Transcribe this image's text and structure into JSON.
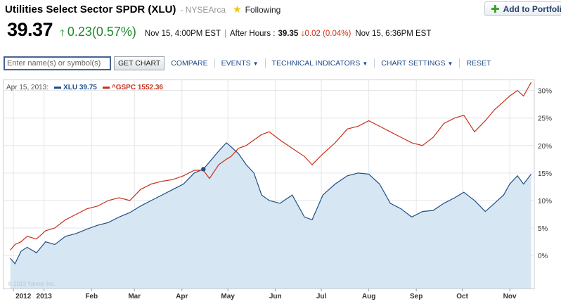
{
  "header": {
    "title": "Utilities Select Sector SPDR (XLU)",
    "exchange": "- NYSEArca",
    "following_label": "Following",
    "add_portfolio_label": "Add to Portfolio"
  },
  "quote": {
    "price": "39.37",
    "change": "0.23",
    "change_pct": "(0.57%)",
    "close_time": "Nov 15, 4:00PM EST",
    "after_hours_label": "After Hours :",
    "after_hours_price": "39.35",
    "after_hours_change": "0.02 (0.04%)",
    "after_hours_time": "Nov 15, 6:36PM EST"
  },
  "toolbar": {
    "symbol_placeholder": "Enter name(s) or symbol(s)",
    "get_chart_label": "GET CHART",
    "compare_label": "COMPARE",
    "events_label": "EVENTS",
    "technical_indicators_label": "TECHNICAL INDICATORS",
    "chart_settings_label": "CHART SETTINGS",
    "reset_label": "RESET"
  },
  "legend": {
    "date": "Apr 15, 2013:",
    "xlu": "XLU 39.75",
    "gspc": "^GSPC 1552.36"
  },
  "credit": "© 2013 Yahoo! Inc.",
  "colors": {
    "xlu": "#1f4f85",
    "xlu_fill": "#d6e6f2",
    "gspc": "#c8311c",
    "positive": "#1d8b2a",
    "negative": "#d12f17"
  },
  "chart_data": {
    "type": "area",
    "ylabel": "",
    "y_unit": "%",
    "ylim": [
      -6,
      32
    ],
    "y_ticks": [
      "0%",
      "5%",
      "10%",
      "15%",
      "20%",
      "25%",
      "30%"
    ],
    "y_tick_values": [
      0,
      5,
      10,
      15,
      20,
      25,
      30
    ],
    "x_tick_labels": [
      "2012",
      "2013",
      "Feb",
      "Mar",
      "Apr",
      "May",
      "Jun",
      "Jul",
      "Aug",
      "Sep",
      "Oct",
      "Nov"
    ],
    "x_tick_values": [
      "2012-12-12",
      "2013-01-01",
      "2013-02-01",
      "2013-03-01",
      "2013-04-01",
      "2013-05-01",
      "2013-06-01",
      "2013-07-01",
      "2013-08-01",
      "2013-09-01",
      "2013-10-01",
      "2013-11-01"
    ],
    "grid": true,
    "marker": {
      "date": "2013-04-15",
      "value": 15.7
    },
    "series": [
      {
        "name": "XLU",
        "style": "area",
        "points": [
          [
            "2012-12-10",
            -0.5
          ],
          [
            "2012-12-13",
            -1.5
          ],
          [
            "2012-12-17",
            0.8
          ],
          [
            "2012-12-21",
            1.5
          ],
          [
            "2012-12-27",
            0.5
          ],
          [
            "2013-01-02",
            2.5
          ],
          [
            "2013-01-08",
            2.0
          ],
          [
            "2013-01-15",
            3.5
          ],
          [
            "2013-01-22",
            4.0
          ],
          [
            "2013-01-29",
            4.8
          ],
          [
            "2013-02-05",
            5.5
          ],
          [
            "2013-02-12",
            6.0
          ],
          [
            "2013-02-19",
            7.0
          ],
          [
            "2013-02-26",
            7.8
          ],
          [
            "2013-03-05",
            9.0
          ],
          [
            "2013-03-12",
            10.0
          ],
          [
            "2013-03-19",
            11.0
          ],
          [
            "2013-03-26",
            12.0
          ],
          [
            "2013-04-02",
            13.0
          ],
          [
            "2013-04-09",
            15.0
          ],
          [
            "2013-04-15",
            15.7
          ],
          [
            "2013-04-19",
            17.0
          ],
          [
            "2013-04-25",
            19.0
          ],
          [
            "2013-04-30",
            20.5
          ],
          [
            "2013-05-03",
            19.8
          ],
          [
            "2013-05-08",
            18.5
          ],
          [
            "2013-05-13",
            16.5
          ],
          [
            "2013-05-18",
            15.0
          ],
          [
            "2013-05-23",
            11.0
          ],
          [
            "2013-05-28",
            10.0
          ],
          [
            "2013-06-04",
            9.5
          ],
          [
            "2013-06-12",
            11.0
          ],
          [
            "2013-06-20",
            7.0
          ],
          [
            "2013-06-25",
            6.5
          ],
          [
            "2013-07-02",
            11.0
          ],
          [
            "2013-07-10",
            13.0
          ],
          [
            "2013-07-18",
            14.5
          ],
          [
            "2013-07-25",
            15.0
          ],
          [
            "2013-08-01",
            14.8
          ],
          [
            "2013-08-08",
            13.0
          ],
          [
            "2013-08-15",
            9.5
          ],
          [
            "2013-08-22",
            8.5
          ],
          [
            "2013-08-29",
            7.0
          ],
          [
            "2013-09-05",
            8.0
          ],
          [
            "2013-09-12",
            8.2
          ],
          [
            "2013-09-19",
            9.5
          ],
          [
            "2013-09-26",
            10.5
          ],
          [
            "2013-10-02",
            11.5
          ],
          [
            "2013-10-09",
            10.0
          ],
          [
            "2013-10-16",
            8.0
          ],
          [
            "2013-10-22",
            9.5
          ],
          [
            "2013-10-28",
            11.0
          ],
          [
            "2013-11-01",
            13.0
          ],
          [
            "2013-11-06",
            14.5
          ],
          [
            "2013-11-10",
            13.0
          ],
          [
            "2013-11-15",
            14.8
          ]
        ]
      },
      {
        "name": "^GSPC",
        "style": "line",
        "points": [
          [
            "2012-12-10",
            1.0
          ],
          [
            "2012-12-13",
            2.0
          ],
          [
            "2012-12-17",
            2.5
          ],
          [
            "2012-12-21",
            3.5
          ],
          [
            "2012-12-27",
            3.0
          ],
          [
            "2013-01-02",
            4.5
          ],
          [
            "2013-01-08",
            5.0
          ],
          [
            "2013-01-15",
            6.5
          ],
          [
            "2013-01-22",
            7.5
          ],
          [
            "2013-01-29",
            8.5
          ],
          [
            "2013-02-05",
            9.0
          ],
          [
            "2013-02-12",
            10.0
          ],
          [
            "2013-02-19",
            10.5
          ],
          [
            "2013-02-26",
            10.0
          ],
          [
            "2013-03-05",
            12.0
          ],
          [
            "2013-03-12",
            13.0
          ],
          [
            "2013-03-19",
            13.5
          ],
          [
            "2013-03-26",
            13.8
          ],
          [
            "2013-04-02",
            14.5
          ],
          [
            "2013-04-09",
            15.5
          ],
          [
            "2013-04-15",
            15.5
          ],
          [
            "2013-04-19",
            14.0
          ],
          [
            "2013-04-25",
            16.5
          ],
          [
            "2013-04-30",
            17.5
          ],
          [
            "2013-05-03",
            18.0
          ],
          [
            "2013-05-08",
            19.5
          ],
          [
            "2013-05-13",
            20.0
          ],
          [
            "2013-05-18",
            21.0
          ],
          [
            "2013-05-23",
            22.0
          ],
          [
            "2013-05-28",
            22.5
          ],
          [
            "2013-06-04",
            21.0
          ],
          [
            "2013-06-12",
            19.5
          ],
          [
            "2013-06-20",
            18.0
          ],
          [
            "2013-06-25",
            16.5
          ],
          [
            "2013-07-02",
            18.5
          ],
          [
            "2013-07-10",
            20.5
          ],
          [
            "2013-07-18",
            23.0
          ],
          [
            "2013-07-25",
            23.5
          ],
          [
            "2013-08-01",
            24.5
          ],
          [
            "2013-08-08",
            23.5
          ],
          [
            "2013-08-15",
            22.5
          ],
          [
            "2013-08-22",
            21.5
          ],
          [
            "2013-08-29",
            20.5
          ],
          [
            "2013-09-05",
            20.0
          ],
          [
            "2013-09-12",
            21.5
          ],
          [
            "2013-09-19",
            24.0
          ],
          [
            "2013-09-26",
            25.0
          ],
          [
            "2013-10-02",
            25.5
          ],
          [
            "2013-10-09",
            22.5
          ],
          [
            "2013-10-16",
            24.5
          ],
          [
            "2013-10-22",
            26.5
          ],
          [
            "2013-10-28",
            28.0
          ],
          [
            "2013-11-01",
            29.0
          ],
          [
            "2013-11-06",
            30.0
          ],
          [
            "2013-11-10",
            29.0
          ],
          [
            "2013-11-15",
            31.5
          ]
        ]
      }
    ]
  }
}
